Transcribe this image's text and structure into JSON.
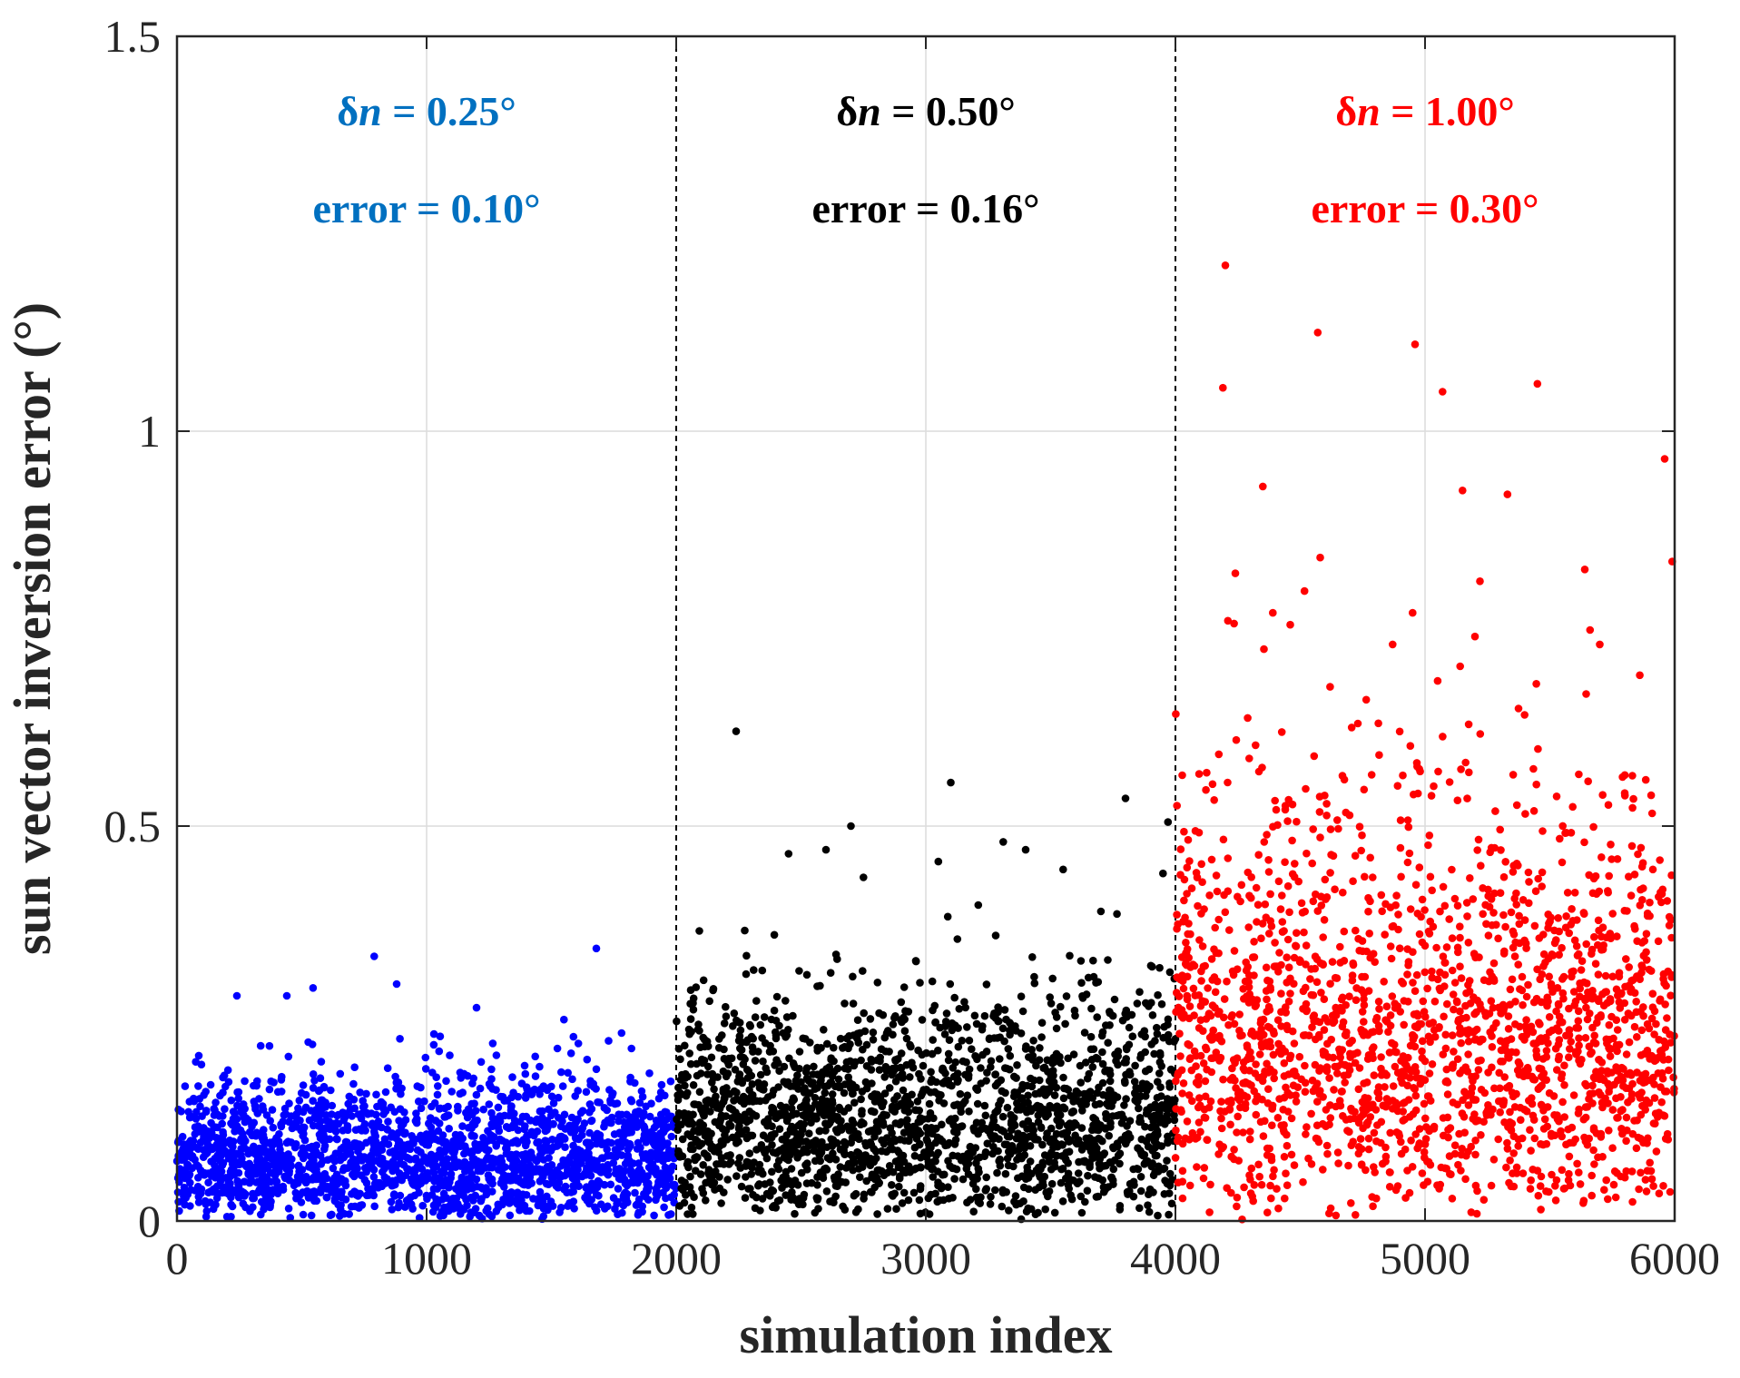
{
  "chart_data": {
    "type": "scatter",
    "title": "",
    "xlabel": "simulation index",
    "ylabel": "sun vector inversion error (°)",
    "xlim": [
      0,
      6000
    ],
    "ylim": [
      0,
      1.5
    ],
    "xticks": [
      0,
      1000,
      2000,
      3000,
      4000,
      5000,
      6000
    ],
    "xtick_labels": [
      "0",
      "1000",
      "2000",
      "3000",
      "4000",
      "5000",
      "6000"
    ],
    "yticks": [
      0,
      0.5,
      1,
      1.5
    ],
    "ytick_labels": [
      "0",
      "0.5",
      "1",
      "1.5"
    ],
    "grid": true,
    "dividers_x": [
      2000,
      4000
    ],
    "groups": [
      {
        "color": "#0000ff",
        "label_color": "#0070c0",
        "x_range": [
          0,
          2000
        ],
        "count": 2000,
        "annotation_dn_prefix": "δ",
        "annotation_dn_var": "n",
        "annotation_dn_value": " = 0.25°",
        "annotation_error": "error = 0.10°",
        "outliers": [
          [
            790,
            0.335
          ],
          [
            1680,
            0.345
          ],
          [
            880,
            0.3
          ],
          [
            545,
            0.295
          ],
          [
            440,
            0.285
          ],
          [
            240,
            0.285
          ],
          [
            1200,
            0.27
          ],
          [
            1550,
            0.255
          ]
        ]
      },
      {
        "color": "#000000",
        "label_color": "#000000",
        "x_range": [
          2000,
          4000
        ],
        "count": 2000,
        "annotation_dn_prefix": "δ",
        "annotation_dn_var": "n",
        "annotation_dn_value": " = 0.50°",
        "annotation_error": "error = 0.16°",
        "outliers": [
          [
            2240,
            0.62
          ],
          [
            3100,
            0.555
          ],
          [
            3800,
            0.535
          ],
          [
            2700,
            0.5
          ],
          [
            3970,
            0.505
          ],
          [
            3310,
            0.48
          ],
          [
            2450,
            0.465
          ],
          [
            2600,
            0.47
          ],
          [
            3400,
            0.47
          ],
          [
            3050,
            0.455
          ],
          [
            3550,
            0.445
          ],
          [
            2750,
            0.435
          ],
          [
            3950,
            0.44
          ],
          [
            3210,
            0.4
          ]
        ]
      },
      {
        "color": "#ff0000",
        "label_color": "#ff0000",
        "x_range": [
          4000,
          6000
        ],
        "count": 2000,
        "annotation_dn_prefix": "δ",
        "annotation_dn_var": "n",
        "annotation_dn_value": " = 1.00°",
        "annotation_error": "error = 0.30°",
        "outliers": [
          [
            4200,
            1.21
          ],
          [
            4570,
            1.125
          ],
          [
            4960,
            1.11
          ],
          [
            4190,
            1.055
          ],
          [
            5070,
            1.05
          ],
          [
            5450,
            1.06
          ],
          [
            5960,
            0.965
          ],
          [
            4350,
            0.93
          ],
          [
            5150,
            0.925
          ],
          [
            5330,
            0.92
          ],
          [
            4580,
            0.84
          ],
          [
            5990,
            0.835
          ],
          [
            4240,
            0.82
          ],
          [
            5640,
            0.825
          ],
          [
            5220,
            0.81
          ],
          [
            4390,
            0.77
          ],
          [
            4950,
            0.77
          ],
          [
            5200,
            0.74
          ],
          [
            4210,
            0.76
          ],
          [
            5700,
            0.73
          ],
          [
            4460,
            0.755
          ],
          [
            4870,
            0.73
          ]
        ]
      }
    ]
  }
}
